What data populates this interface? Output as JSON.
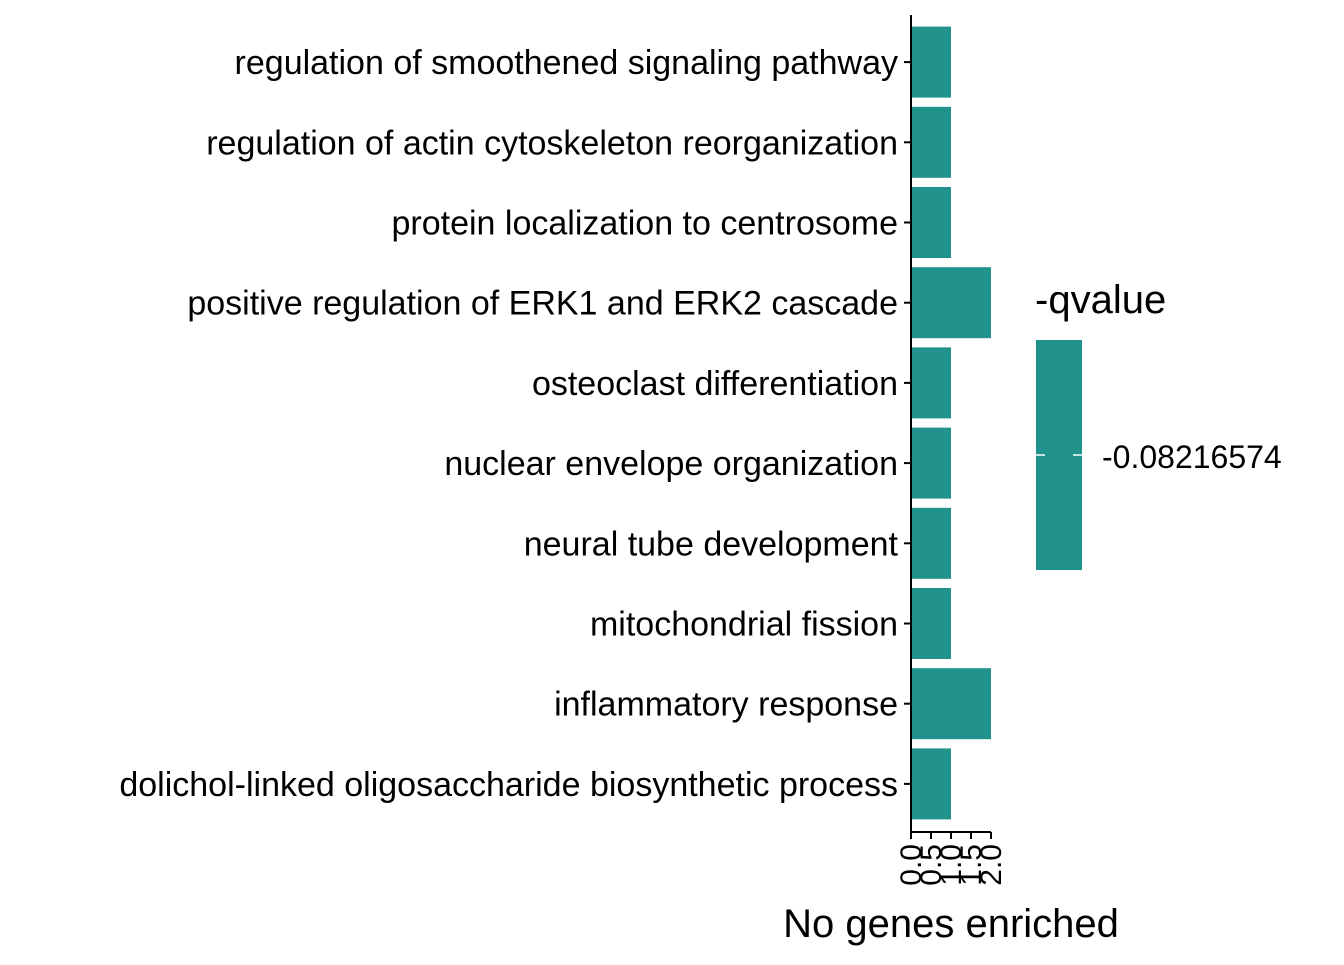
{
  "chart_data": {
    "type": "bar",
    "orientation": "horizontal",
    "categories": [
      "regulation of smoothened signaling pathway",
      "regulation of actin cytoskeleton reorganization",
      "protein localization to centrosome",
      "positive regulation of ERK1 and ERK2 cascade",
      "osteoclast differentiation",
      "nuclear envelope organization",
      "neural tube development",
      "mitochondrial fission",
      "inflammatory response",
      "dolichol-linked oligosaccharide biosynthetic process"
    ],
    "values": [
      1,
      1,
      1,
      2,
      1,
      1,
      1,
      1,
      2,
      1
    ],
    "xlabel": "No genes enriched",
    "ylabel": "",
    "xlim": [
      0,
      2
    ],
    "xticks": [
      "0.0",
      "0.5",
      "1.0",
      "1.5",
      "2.0"
    ],
    "grid": false,
    "bar_color": "#21928C",
    "legend": {
      "title": "-qvalue",
      "label": "-0.08216574",
      "color": "#21928C",
      "placement": "right"
    }
  }
}
